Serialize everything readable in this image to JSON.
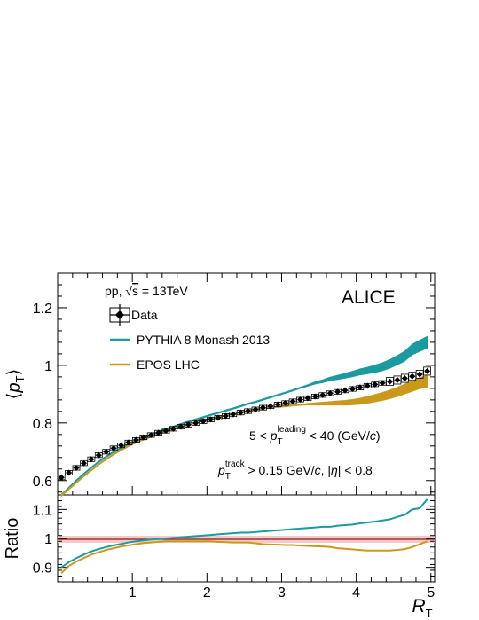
{
  "colors": {
    "data": "#000000",
    "pythia": "#1a9b9f",
    "epos": "#c99a1a",
    "unity_band": "#f4c9c9",
    "unity_line": "#8b1a1a"
  },
  "chart_data": [
    {
      "panel": "top",
      "type": "line",
      "ylabel": "⟨p_T⟩",
      "ylim": [
        0.55,
        1.32
      ],
      "xlim": [
        0.0,
        5.05
      ],
      "yticks": [
        0.6,
        0.8,
        1.0,
        1.2
      ],
      "ytick_labels": [
        "0.6",
        "0.8",
        "1",
        "1.2"
      ],
      "experiment": "ALICE",
      "system_label": "pp, √s = 13TeV",
      "selection_labels": [
        "5 < p_T^leading < 40 (GeV/c)",
        "p_T^track > 0.15 GeV/c, |η| < 0.8"
      ],
      "legend": [
        "Data",
        "PYTHIA 8 Monash 2013",
        "EPOS LHC"
      ],
      "legend_position": "top-left",
      "series": [
        {
          "name": "Data",
          "x": [
            0.05,
            0.15,
            0.25,
            0.35,
            0.45,
            0.55,
            0.65,
            0.75,
            0.85,
            0.95,
            1.05,
            1.15,
            1.25,
            1.35,
            1.45,
            1.55,
            1.65,
            1.75,
            1.85,
            1.95,
            2.05,
            2.15,
            2.25,
            2.35,
            2.45,
            2.55,
            2.65,
            2.75,
            2.85,
            2.95,
            3.05,
            3.15,
            3.25,
            3.35,
            3.45,
            3.55,
            3.65,
            3.75,
            3.85,
            3.95,
            4.05,
            4.15,
            4.25,
            4.35,
            4.45,
            4.55,
            4.65,
            4.75,
            4.85,
            4.95
          ],
          "y": [
            0.611,
            0.627,
            0.644,
            0.66,
            0.674,
            0.688,
            0.7,
            0.712,
            0.722,
            0.732,
            0.741,
            0.75,
            0.758,
            0.766,
            0.773,
            0.78,
            0.787,
            0.794,
            0.8,
            0.806,
            0.812,
            0.818,
            0.824,
            0.83,
            0.836,
            0.841,
            0.847,
            0.853,
            0.858,
            0.864,
            0.869,
            0.875,
            0.881,
            0.886,
            0.892,
            0.897,
            0.903,
            0.908,
            0.913,
            0.918,
            0.923,
            0.929,
            0.934,
            0.939,
            0.944,
            0.949,
            0.955,
            0.962,
            0.969,
            0.98
          ]
        },
        {
          "name": "PYTHIA 8 Monash 2013",
          "x": [
            0.05,
            0.15,
            0.25,
            0.35,
            0.45,
            0.55,
            0.65,
            0.75,
            0.85,
            0.95,
            1.05,
            1.15,
            1.25,
            1.35,
            1.45,
            1.55,
            1.65,
            1.75,
            1.85,
            1.95,
            2.05,
            2.15,
            2.25,
            2.35,
            2.45,
            2.55,
            2.65,
            2.75,
            2.85,
            2.95,
            3.05,
            3.15,
            3.25,
            3.35,
            3.45,
            3.55,
            3.65,
            3.75,
            3.85,
            3.95,
            4.05,
            4.15,
            4.25,
            4.35,
            4.45,
            4.55,
            4.65,
            4.75,
            4.85,
            4.95
          ],
          "y": [
            0.55,
            0.575,
            0.6,
            0.623,
            0.645,
            0.665,
            0.683,
            0.699,
            0.713,
            0.726,
            0.738,
            0.749,
            0.759,
            0.769,
            0.778,
            0.787,
            0.796,
            0.804,
            0.812,
            0.82,
            0.828,
            0.835,
            0.843,
            0.85,
            0.858,
            0.866,
            0.873,
            0.881,
            0.889,
            0.897,
            0.905,
            0.913,
            0.922,
            0.93,
            0.939,
            0.945,
            0.953,
            0.958,
            0.964,
            0.97,
            0.977,
            0.982,
            0.988,
            0.995,
            1.005,
            1.018,
            1.032,
            1.055,
            1.068,
            1.08
          ]
        },
        {
          "name": "EPOS LHC",
          "x": [
            0.05,
            0.15,
            0.25,
            0.35,
            0.45,
            0.55,
            0.65,
            0.75,
            0.85,
            0.95,
            1.05,
            1.15,
            1.25,
            1.35,
            1.45,
            1.55,
            1.65,
            1.75,
            1.85,
            1.95,
            2.05,
            2.15,
            2.25,
            2.35,
            2.45,
            2.55,
            2.65,
            2.75,
            2.85,
            2.95,
            3.05,
            3.15,
            3.25,
            3.35,
            3.45,
            3.55,
            3.65,
            3.75,
            3.85,
            3.95,
            4.05,
            4.15,
            4.25,
            4.35,
            4.45,
            4.55,
            4.65,
            4.75,
            4.85,
            4.95
          ],
          "y": [
            0.548,
            0.57,
            0.593,
            0.615,
            0.636,
            0.656,
            0.674,
            0.691,
            0.706,
            0.72,
            0.732,
            0.743,
            0.753,
            0.763,
            0.771,
            0.779,
            0.787,
            0.794,
            0.801,
            0.808,
            0.814,
            0.82,
            0.826,
            0.832,
            0.837,
            0.842,
            0.847,
            0.851,
            0.854,
            0.856,
            0.858,
            0.861,
            0.863,
            0.865,
            0.866,
            0.867,
            0.868,
            0.869,
            0.87,
            0.872,
            0.875,
            0.88,
            0.886,
            0.892,
            0.899,
            0.908,
            0.918,
            0.928,
            0.938,
            0.945
          ]
        }
      ]
    },
    {
      "panel": "bottom",
      "type": "line",
      "xlabel": "R_T",
      "ylabel": "Ratio",
      "ylim": [
        0.85,
        1.15
      ],
      "xlim": [
        0.0,
        5.05
      ],
      "xticks": [
        1,
        2,
        3,
        4,
        5
      ],
      "xtick_labels": [
        "1",
        "2",
        "3",
        "4",
        "5"
      ],
      "yticks": [
        0.9,
        1.0,
        1.1
      ],
      "ytick_labels": [
        "0.9",
        "1",
        "1.1"
      ],
      "series": [
        {
          "name": "PYTHIA 8 Monash 2013",
          "x": [
            0.05,
            0.15,
            0.25,
            0.35,
            0.45,
            0.55,
            0.65,
            0.75,
            0.85,
            0.95,
            1.05,
            1.15,
            1.25,
            1.35,
            1.45,
            1.55,
            1.65,
            1.75,
            1.85,
            1.95,
            2.05,
            2.15,
            2.25,
            2.35,
            2.45,
            2.55,
            2.65,
            2.75,
            2.85,
            2.95,
            3.05,
            3.15,
            3.25,
            3.35,
            3.45,
            3.55,
            3.65,
            3.75,
            3.85,
            3.95,
            4.05,
            4.15,
            4.25,
            4.35,
            4.45,
            4.55,
            4.65,
            4.75,
            4.85,
            4.95
          ],
          "y": [
            0.9,
            0.918,
            0.932,
            0.944,
            0.955,
            0.963,
            0.97,
            0.976,
            0.981,
            0.986,
            0.99,
            0.993,
            0.996,
            0.998,
            1.0,
            1.002,
            1.004,
            1.006,
            1.008,
            1.01,
            1.012,
            1.014,
            1.016,
            1.018,
            1.02,
            1.02,
            1.022,
            1.024,
            1.026,
            1.028,
            1.03,
            1.032,
            1.034,
            1.036,
            1.038,
            1.04,
            1.04,
            1.044,
            1.046,
            1.048,
            1.052,
            1.055,
            1.058,
            1.062,
            1.066,
            1.074,
            1.082,
            1.1,
            1.104,
            1.135
          ]
        },
        {
          "name": "EPOS LHC",
          "x": [
            0.05,
            0.15,
            0.25,
            0.35,
            0.45,
            0.55,
            0.65,
            0.75,
            0.85,
            0.95,
            1.05,
            1.15,
            1.25,
            1.35,
            1.45,
            1.55,
            1.65,
            1.75,
            1.85,
            1.95,
            2.05,
            2.15,
            2.25,
            2.35,
            2.45,
            2.55,
            2.65,
            2.75,
            2.85,
            2.95,
            3.05,
            3.15,
            3.25,
            3.35,
            3.45,
            3.55,
            3.65,
            3.75,
            3.85,
            3.95,
            4.05,
            4.15,
            4.25,
            4.35,
            4.45,
            4.55,
            4.65,
            4.75,
            4.85,
            4.95
          ],
          "y": [
            0.88,
            0.905,
            0.92,
            0.932,
            0.944,
            0.952,
            0.96,
            0.966,
            0.972,
            0.976,
            0.98,
            0.984,
            0.986,
            0.988,
            0.99,
            0.99,
            0.99,
            0.99,
            0.99,
            0.99,
            0.99,
            0.988,
            0.987,
            0.986,
            0.986,
            0.986,
            0.983,
            0.98,
            0.979,
            0.978,
            0.977,
            0.977,
            0.975,
            0.974,
            0.973,
            0.972,
            0.97,
            0.966,
            0.964,
            0.962,
            0.96,
            0.958,
            0.958,
            0.958,
            0.958,
            0.96,
            0.963,
            0.97,
            0.98,
            0.99
          ]
        }
      ]
    }
  ]
}
